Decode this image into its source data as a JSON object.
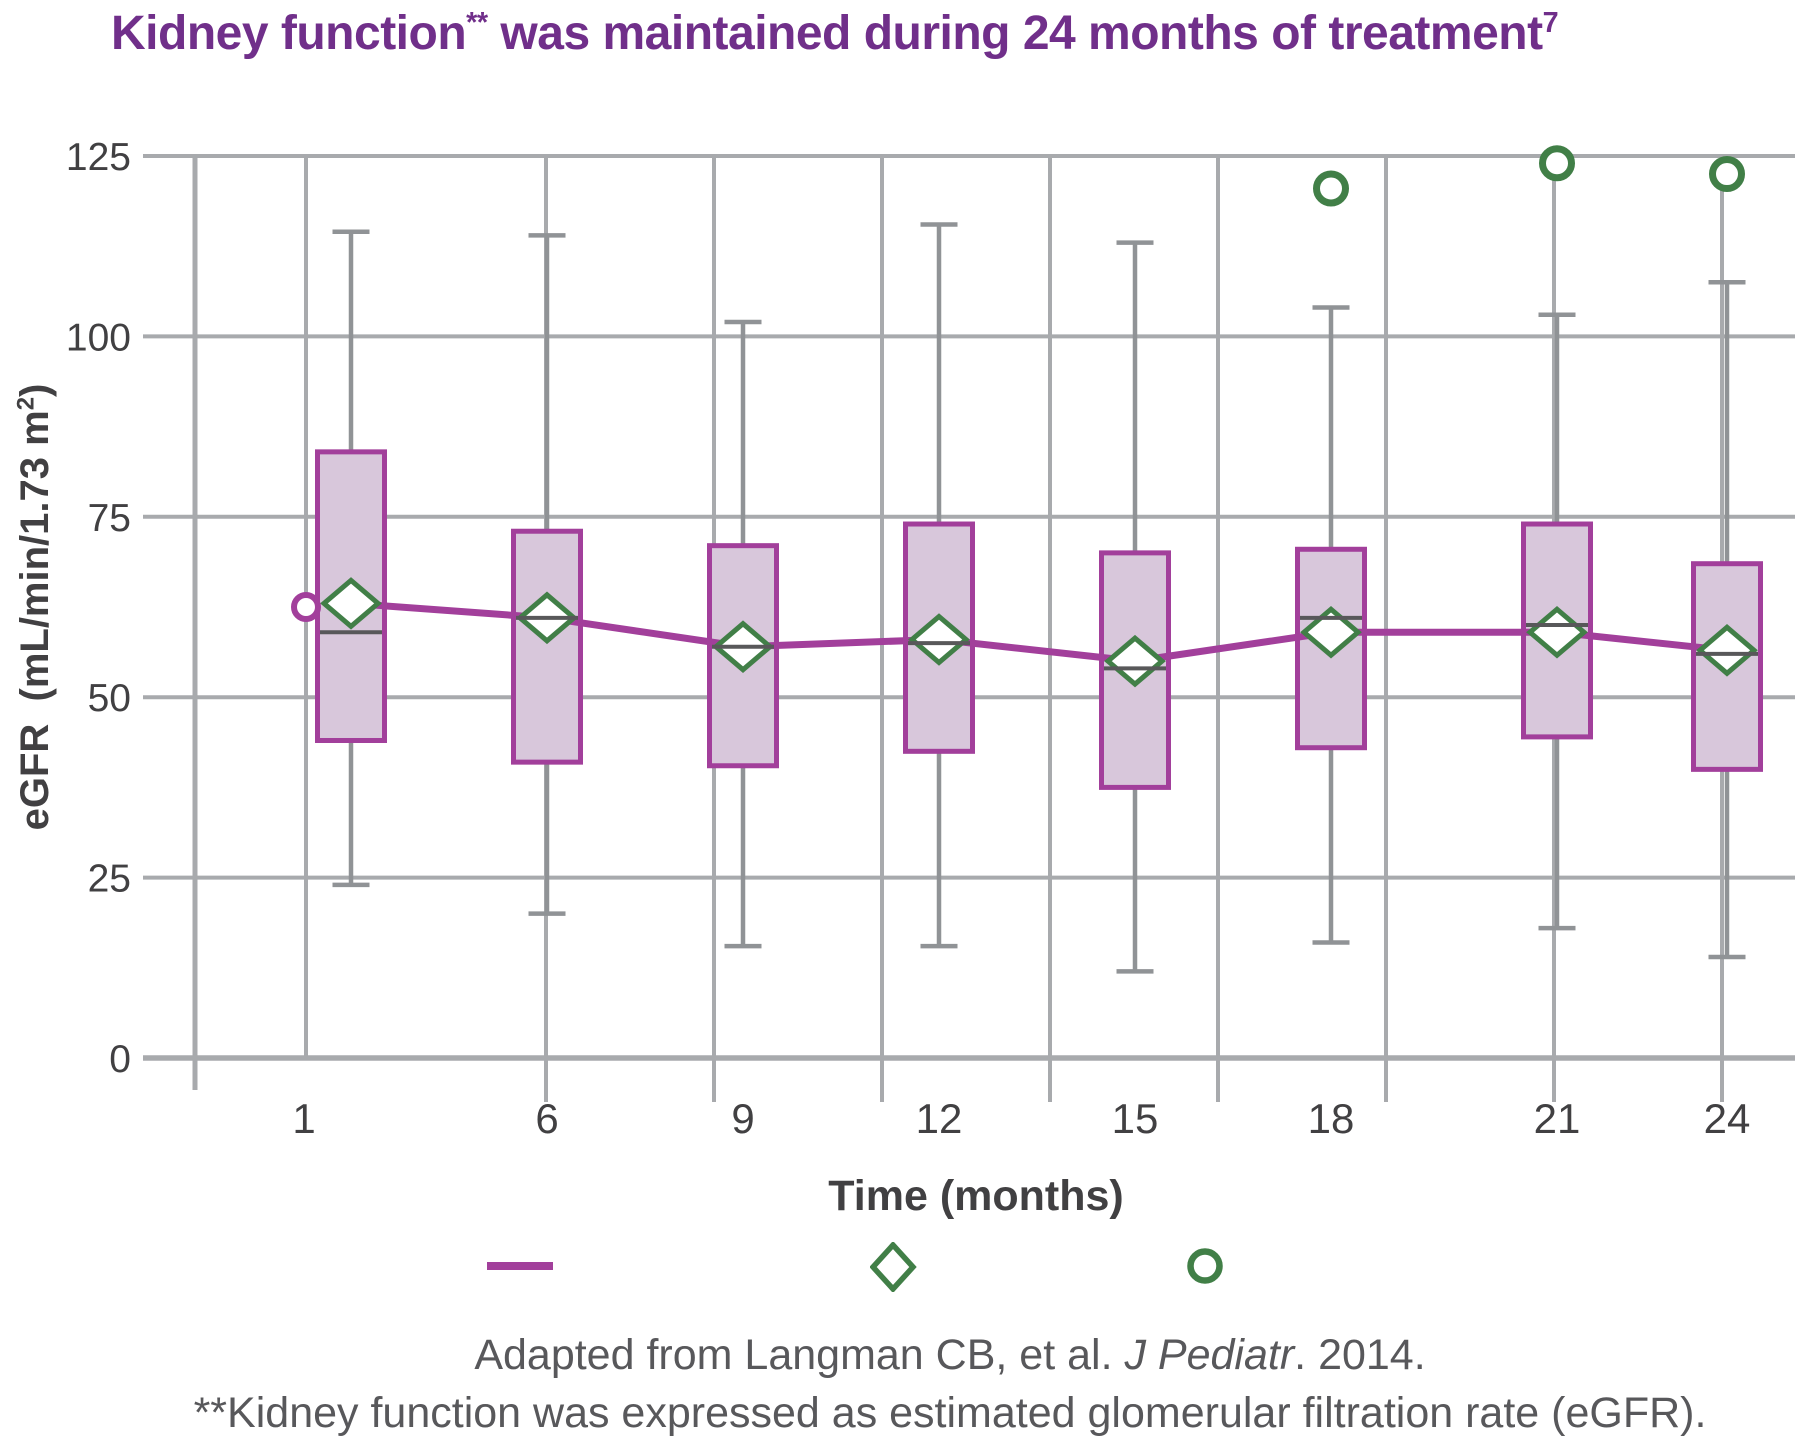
{
  "title": {
    "text_main": "Kidney function",
    "sup1": "**",
    "text_rest": " was maintained during 24 months of treatment",
    "sup2": "7"
  },
  "y_axis": {
    "label_pre": "eGFR  (mL/min/1.73 m",
    "label_sup": "2",
    "label_post": ")",
    "tick_labels": [
      "0",
      "25",
      "50",
      "75",
      "100",
      "125"
    ],
    "range": [
      0,
      125
    ]
  },
  "x_axis": {
    "title": "Time (months)",
    "tick_labels": [
      "1",
      "6",
      "9",
      "12",
      "15",
      "18",
      "21",
      "24"
    ]
  },
  "chart_data": {
    "type": "box",
    "title": "Kidney function was maintained during 24 months of treatment",
    "xlabel": "Time (months)",
    "ylabel": "eGFR (mL/min/1.73 m2)",
    "ylim": [
      0,
      125
    ],
    "grid": true,
    "legend_position": "bottom",
    "categories": [
      1,
      6,
      9,
      12,
      15,
      18,
      21,
      24
    ],
    "whisker_high": [
      114.5,
      114,
      102,
      115.5,
      113,
      104,
      103,
      107.5
    ],
    "q3": [
      84,
      73,
      71,
      74,
      70,
      70.5,
      74,
      68.5
    ],
    "mean": [
      63,
      61,
      57,
      58,
      55,
      59,
      59,
      56.5
    ],
    "median": [
      59,
      61,
      57,
      57.5,
      54,
      61,
      60,
      56
    ],
    "q1": [
      44,
      41,
      40.5,
      42.5,
      37.5,
      43,
      44.5,
      40
    ],
    "whisker_low": [
      24,
      20,
      15.5,
      15.5,
      12,
      16,
      18,
      14
    ],
    "outliers": [
      {
        "month": 1,
        "value": 62.5,
        "marker": "open-circle",
        "color": "purple"
      },
      {
        "month": 18,
        "value": 120.5,
        "marker": "open-circle",
        "color": "green"
      },
      {
        "month": 21,
        "value": 124,
        "marker": "open-circle",
        "color": "green"
      },
      {
        "month": 24,
        "value": 122.5,
        "marker": "open-circle",
        "color": "green"
      }
    ]
  },
  "legend": {
    "items": [
      {
        "symbol": "line",
        "meaning": "mean-line",
        "color": "#a23f9b"
      },
      {
        "symbol": "diamond",
        "meaning": "mean-marker",
        "color": "#417f47"
      },
      {
        "symbol": "circle",
        "meaning": "outlier-marker",
        "color": "#417f47"
      }
    ]
  },
  "footnotes": {
    "line1_pre": "Adapted from Langman CB, et al. ",
    "line1_italic": "J Pediatr",
    "line1_post": ". 2014.",
    "line2": "**Kidney function was expressed as estimated glomerular filtration rate (eGFR)."
  },
  "colors": {
    "title_purple": "#702f8a",
    "magenta": "#a23f9b",
    "box_fill": "#d8c7db",
    "green": "#417f47",
    "gridline": "#a8aaad",
    "whisker": "#909396",
    "axis_text": "#414042",
    "footer_text": "#58585b",
    "background": "#ffffff"
  }
}
